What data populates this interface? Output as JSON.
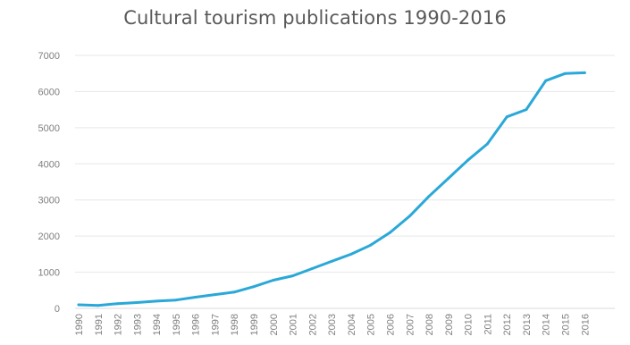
{
  "chart_data": {
    "type": "line",
    "title": "Cultural tourism publications 1990-2016",
    "xlabel": "",
    "ylabel": "",
    "ylim": [
      0,
      7000
    ],
    "yticks": [
      "0",
      "1000",
      "2000",
      "3000",
      "4000",
      "5000",
      "6000",
      "7000"
    ],
    "categories": [
      "1990",
      "1991",
      "1992",
      "1993",
      "1994",
      "1995",
      "1996",
      "1997",
      "1998",
      "1999",
      "2000",
      "2001",
      "2002",
      "2003",
      "2004",
      "2005",
      "2006",
      "2007",
      "2008",
      "2009",
      "2010",
      "2011",
      "2012",
      "2013",
      "2014",
      "2015",
      "2016"
    ],
    "series": [
      {
        "color": "#2aa8d8",
        "values": [
          100,
          80,
          130,
          160,
          200,
          230,
          310,
          380,
          450,
          600,
          780,
          900,
          1100,
          1300,
          1500,
          1750,
          2100,
          2550,
          3100,
          3600,
          4100,
          4550,
          5300,
          5500,
          6300,
          6500,
          6520
        ]
      }
    ],
    "grid": true,
    "legend": "none"
  }
}
